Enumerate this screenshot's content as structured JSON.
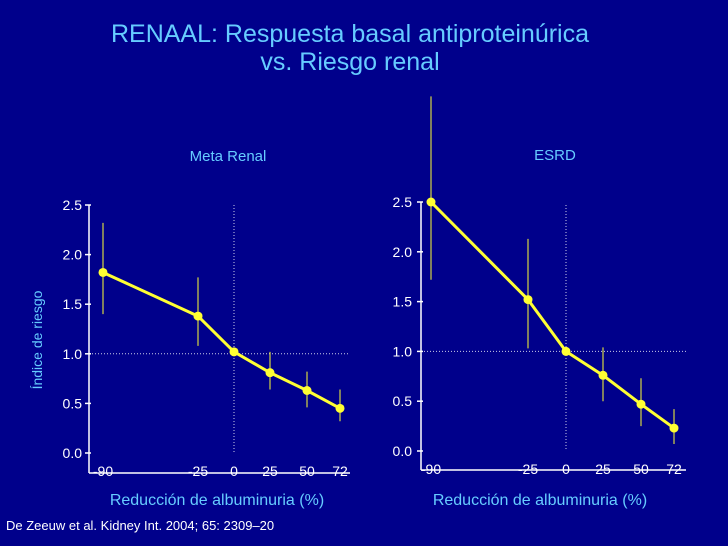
{
  "slide": {
    "title_line1": "RENAAL: Respuesta basal antiproteinúrica",
    "title_line2": "vs. Riesgo renal",
    "citation": "De Zeeuw et al. Kidney Int. 2004; 65: 2309–20"
  },
  "colors": {
    "background": "#00008b",
    "title": "#66ccff",
    "series": "#ffff33",
    "axis": "#ffffff"
  },
  "chart_data": [
    {
      "type": "line",
      "title": "Meta Renal",
      "xlabel": "Reducción de albuminuria (%)",
      "ylabel": "Índice de riesgo",
      "x_tick_labels": [
        "-90",
        "-25",
        "0",
        "25",
        "50",
        "72"
      ],
      "x": [
        -90,
        -25,
        0,
        25,
        50,
        72
      ],
      "values": [
        1.82,
        1.38,
        1.02,
        0.81,
        0.63,
        0.45
      ],
      "error_low": [
        1.4,
        1.08,
        1.0,
        0.64,
        0.46,
        0.32
      ],
      "error_high": [
        2.32,
        1.77,
        1.03,
        1.02,
        0.82,
        0.64
      ],
      "ylim": [
        0,
        2.5
      ],
      "yticks": [
        "0.0",
        "0.5",
        "1.0",
        "1.5",
        "2.0",
        "2.5"
      ],
      "reference_line_y": 1.0,
      "reference_line_x": 0
    },
    {
      "type": "line",
      "title": "ESRD",
      "xlabel": "Reducción de albuminuria (%)",
      "ylabel": "",
      "x_tick_labels": [
        "-90",
        "-25",
        "0",
        "25",
        "50",
        "72"
      ],
      "x": [
        -90,
        -25,
        0,
        25,
        50,
        72
      ],
      "values": [
        2.5,
        1.52,
        1.0,
        0.76,
        0.47,
        0.23
      ],
      "error_low": [
        1.72,
        1.03,
        0.98,
        0.5,
        0.25,
        0.07
      ],
      "error_high": [
        3.56,
        2.13,
        1.02,
        1.04,
        0.73,
        0.42
      ],
      "ylim": [
        0,
        2.5
      ],
      "yticks": [
        "0.0",
        "0.5",
        "1.0",
        "1.5",
        "2.0",
        "2.5"
      ],
      "reference_line_y": 1.0,
      "reference_line_x": 0
    }
  ]
}
